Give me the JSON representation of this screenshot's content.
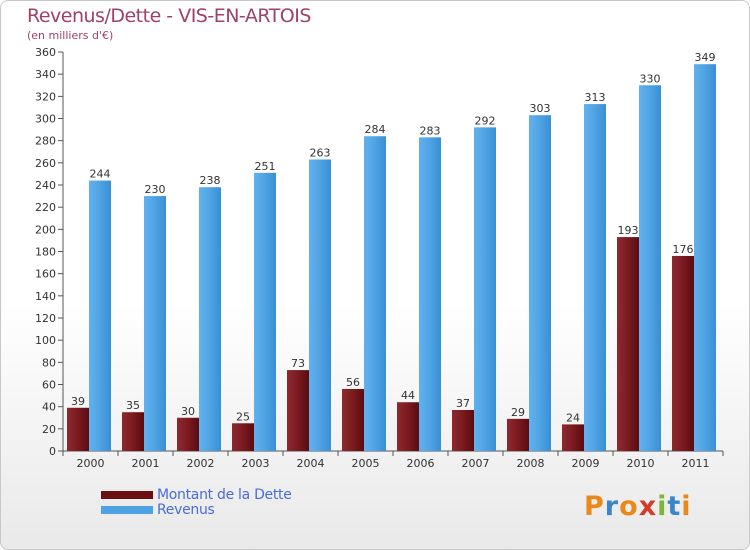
{
  "title": "Revenus/Dette - VIS-EN-ARTOIS",
  "subtitle": "(en milliers d'€)",
  "colors": {
    "dette": "#7a1a1f",
    "revenus": "#4fa3e4"
  },
  "logo_text": "Proxiti",
  "legend": [
    {
      "label": "Montant de la Dette",
      "color": "#6b0f12"
    },
    {
      "label": "Revenus",
      "color": "#4fa3e4"
    }
  ],
  "chart_data": {
    "type": "bar",
    "categories": [
      "2000",
      "2001",
      "2002",
      "2003",
      "2004",
      "2005",
      "2006",
      "2007",
      "2008",
      "2009",
      "2010",
      "2011"
    ],
    "series": [
      {
        "name": "Montant de la Dette",
        "values": [
          39,
          35,
          30,
          25,
          73,
          56,
          44,
          37,
          29,
          24,
          193,
          176
        ]
      },
      {
        "name": "Revenus",
        "values": [
          244,
          230,
          238,
          251,
          263,
          284,
          283,
          292,
          303,
          313,
          330,
          349
        ]
      }
    ],
    "ylim": [
      0,
      360
    ],
    "yticks": [
      0,
      20,
      40,
      60,
      80,
      100,
      120,
      140,
      160,
      180,
      200,
      220,
      240,
      260,
      280,
      300,
      320,
      340,
      360
    ],
    "grid": false,
    "legend_position": "bottom-left"
  }
}
